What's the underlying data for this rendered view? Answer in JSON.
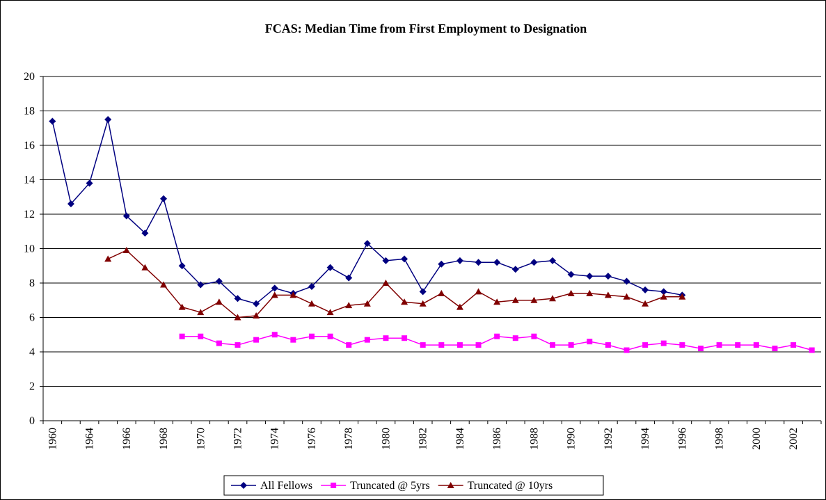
{
  "chart_data": {
    "type": "line",
    "title": "FCAS: Median Time from First Employment to Designation",
    "categories": [
      "1960",
      null,
      "1964",
      null,
      "1966",
      null,
      "1968",
      null,
      "1970",
      null,
      "1972",
      null,
      "1974",
      null,
      "1976",
      null,
      "1978",
      null,
      "1980",
      null,
      "1982",
      null,
      "1984",
      null,
      "1986",
      null,
      "1988",
      null,
      "1990",
      null,
      "1992",
      null,
      "1994",
      null,
      "1996",
      null,
      "1998",
      null,
      "2000",
      null,
      "2002",
      null
    ],
    "series": [
      {
        "name": "All Fellows",
        "color": "#000080",
        "marker": "diamond",
        "values": [
          17.4,
          12.6,
          13.8,
          17.5,
          11.9,
          10.9,
          12.9,
          9.0,
          7.9,
          8.1,
          7.1,
          6.8,
          7.7,
          7.4,
          7.8,
          8.9,
          8.3,
          10.3,
          9.3,
          9.4,
          7.5,
          9.1,
          9.3,
          9.2,
          9.2,
          8.8,
          9.2,
          9.3,
          8.5,
          8.4,
          8.4,
          8.1,
          7.6,
          7.5,
          7.3,
          null,
          null,
          null,
          null,
          null,
          null,
          null
        ]
      },
      {
        "name": "Truncated @ 5yrs",
        "color": "#ff00ff",
        "marker": "square",
        "values": [
          null,
          null,
          null,
          null,
          null,
          null,
          null,
          4.9,
          4.9,
          4.5,
          4.4,
          4.7,
          5.0,
          4.7,
          4.9,
          4.9,
          4.4,
          4.7,
          4.8,
          4.8,
          4.4,
          4.4,
          4.4,
          4.4,
          4.9,
          4.8,
          4.9,
          4.4,
          4.4,
          4.6,
          4.4,
          4.1,
          4.4,
          4.5,
          4.4,
          4.2,
          4.4,
          4.4,
          4.4,
          4.2,
          4.4,
          4.1
        ]
      },
      {
        "name": "Truncated @ 10yrs",
        "color": "#800000",
        "marker": "triangle",
        "values": [
          null,
          null,
          null,
          9.4,
          9.9,
          8.9,
          7.9,
          6.6,
          6.3,
          6.9,
          6.0,
          6.1,
          7.3,
          7.3,
          6.8,
          6.3,
          6.7,
          6.8,
          8.0,
          6.9,
          6.8,
          7.4,
          6.6,
          7.5,
          6.9,
          7.0,
          7.0,
          7.1,
          7.4,
          7.4,
          7.3,
          7.2,
          6.8,
          7.2,
          7.2,
          null,
          null,
          null,
          null,
          null,
          null,
          null
        ]
      }
    ],
    "ylim": [
      0,
      20
    ],
    "yticks": [
      0,
      2,
      4,
      6,
      8,
      10,
      12,
      14,
      16,
      18,
      20
    ],
    "grid": true,
    "legend": "bottom"
  }
}
